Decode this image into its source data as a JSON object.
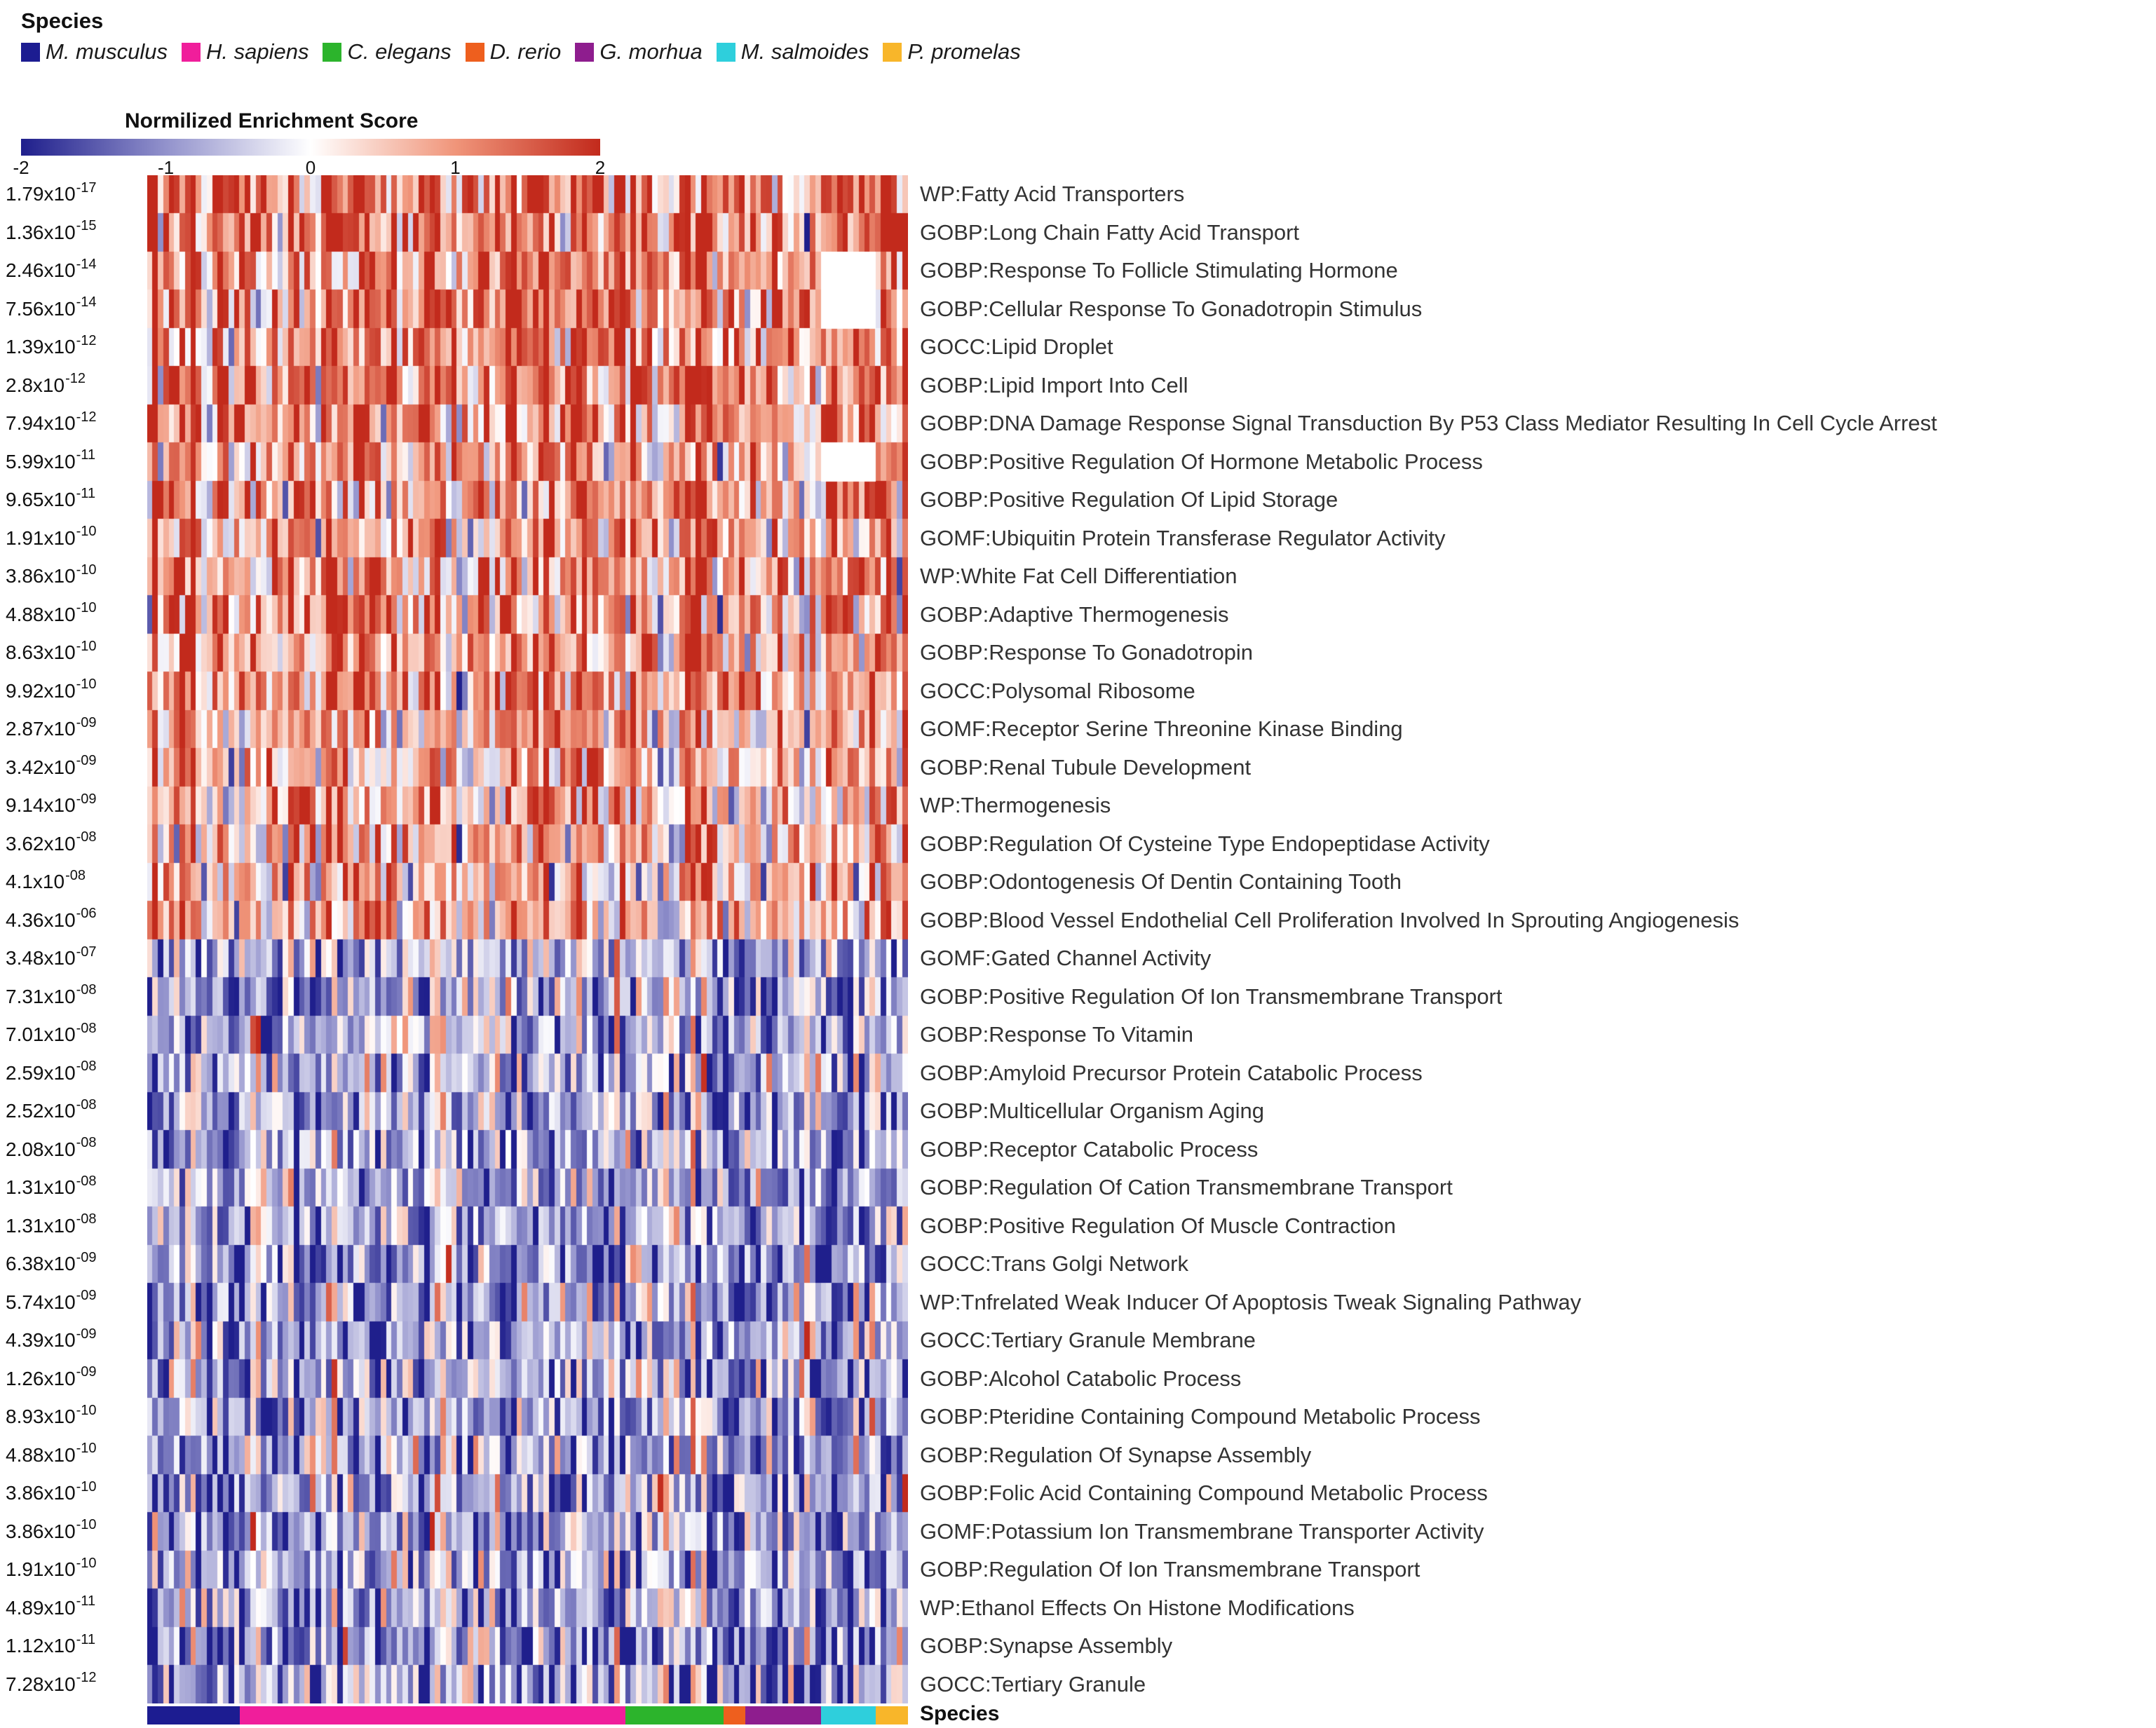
{
  "species_legend": {
    "title": "Species",
    "items": [
      {
        "name": "M. musculus",
        "color": "#1c1c91"
      },
      {
        "name": "H. sapiens",
        "color": "#f01e9b"
      },
      {
        "name": "C. elegans",
        "color": "#2cb42c"
      },
      {
        "name": "D. rerio",
        "color": "#ee5f1e"
      },
      {
        "name": "G. morhua",
        "color": "#8e1d8e"
      },
      {
        "name": "M. salmoides",
        "color": "#2ecfdc"
      },
      {
        "name": "P. promelas",
        "color": "#f8b62a"
      }
    ]
  },
  "colorbar": {
    "title": "Normilized Enrichment Score",
    "ticks": [
      "-2",
      "-1",
      "0",
      "1",
      "2"
    ]
  },
  "bottom_bar_label": "Species",
  "chart_data": {
    "type": "heatmap",
    "title": "Normilized Enrichment Score",
    "value_range": [
      -2,
      2
    ],
    "colormap": [
      {
        "v": -2,
        "c": "#1f1f8c"
      },
      {
        "v": -1,
        "c": "#9292cc"
      },
      {
        "v": 0,
        "c": "#ffffff"
      },
      {
        "v": 1,
        "c": "#f0957a"
      },
      {
        "v": 2,
        "c": "#c22a1c"
      }
    ],
    "n_columns": 140,
    "column_groups": [
      {
        "species": "M. musculus",
        "color": "#1c1c91",
        "columns": 17
      },
      {
        "species": "H. sapiens",
        "color": "#f01e9b",
        "columns": 71
      },
      {
        "species": "C. elegans",
        "color": "#2cb42c",
        "columns": 18
      },
      {
        "species": "D. rerio",
        "color": "#ee5f1e",
        "columns": 4
      },
      {
        "species": "G. morhua",
        "color": "#8e1d8e",
        "columns": 14
      },
      {
        "species": "M. salmoides",
        "color": "#2ecfdc",
        "columns": 10
      },
      {
        "species": "P. promelas",
        "color": "#f8b62a",
        "columns": 6
      }
    ],
    "rows": [
      {
        "pvalue_base": "1.79x10",
        "pvalue_exp": "-17",
        "label": "WP:Fatty Acid Transporters",
        "mean_nes": 1.3
      },
      {
        "pvalue_base": "1.36x10",
        "pvalue_exp": "-15",
        "label": "GOBP:Long Chain Fatty Acid Transport",
        "mean_nes": 1.3
      },
      {
        "pvalue_base": "2.46x10",
        "pvalue_exp": "-14",
        "label": "GOBP:Response To Follicle Stimulating Hormone",
        "mean_nes": 1.1
      },
      {
        "pvalue_base": "7.56x10",
        "pvalue_exp": "-14",
        "label": "GOBP:Cellular Response To Gonadotropin Stimulus",
        "mean_nes": 1.1
      },
      {
        "pvalue_base": "1.39x10",
        "pvalue_exp": "-12",
        "label": "GOCC:Lipid Droplet",
        "mean_nes": 1.2
      },
      {
        "pvalue_base": "2.8x10",
        "pvalue_exp": "-12",
        "label": "GOBP:Lipid Import Into Cell",
        "mean_nes": 1.2
      },
      {
        "pvalue_base": "7.94x10",
        "pvalue_exp": "-12",
        "label": "GOBP:DNA Damage Response Signal Transduction By P53 Class Mediator Resulting In Cell Cycle Arrest",
        "mean_nes": 1.0
      },
      {
        "pvalue_base": "5.99x10",
        "pvalue_exp": "-11",
        "label": "GOBP:Positive Regulation Of Hormone Metabolic Process",
        "mean_nes": 0.9
      },
      {
        "pvalue_base": "9.65x10",
        "pvalue_exp": "-11",
        "label": "GOBP:Positive Regulation Of Lipid Storage",
        "mean_nes": 0.9
      },
      {
        "pvalue_base": "1.91x10",
        "pvalue_exp": "-10",
        "label": "GOMF:Ubiquitin Protein Transferase Regulator Activity",
        "mean_nes": 0.9
      },
      {
        "pvalue_base": "3.86x10",
        "pvalue_exp": "-10",
        "label": "WP:White Fat Cell Differentiation",
        "mean_nes": 1.0
      },
      {
        "pvalue_base": "4.88x10",
        "pvalue_exp": "-10",
        "label": "GOBP:Adaptive Thermogenesis",
        "mean_nes": 1.0
      },
      {
        "pvalue_base": "8.63x10",
        "pvalue_exp": "-10",
        "label": "GOBP:Response To Gonadotropin",
        "mean_nes": 0.9
      },
      {
        "pvalue_base": "9.92x10",
        "pvalue_exp": "-10",
        "label": "GOCC:Polysomal Ribosome",
        "mean_nes": 0.9
      },
      {
        "pvalue_base": "2.87x10",
        "pvalue_exp": "-09",
        "label": "GOMF:Receptor Serine Threonine Kinase Binding",
        "mean_nes": 0.7
      },
      {
        "pvalue_base": "3.42x10",
        "pvalue_exp": "-09",
        "label": "GOBP:Renal Tubule Development",
        "mean_nes": 0.7
      },
      {
        "pvalue_base": "9.14x10",
        "pvalue_exp": "-09",
        "label": "WP:Thermogenesis",
        "mean_nes": 0.7
      },
      {
        "pvalue_base": "3.62x10",
        "pvalue_exp": "-08",
        "label": "GOBP:Regulation Of Cysteine Type Endopeptidase Activity",
        "mean_nes": 0.7
      },
      {
        "pvalue_base": "4.1x10",
        "pvalue_exp": "-08",
        "label": "GOBP:Odontogenesis Of Dentin Containing Tooth",
        "mean_nes": 0.6
      },
      {
        "pvalue_base": "4.36x10",
        "pvalue_exp": "-06",
        "label": "GOBP:Blood Vessel Endothelial Cell Proliferation Involved In Sprouting Angiogenesis",
        "mean_nes": 0.7
      },
      {
        "pvalue_base": "3.48x10",
        "pvalue_exp": "-07",
        "label": "GOMF:Gated Channel Activity",
        "mean_nes": -0.7
      },
      {
        "pvalue_base": "7.31x10",
        "pvalue_exp": "-08",
        "label": "GOBP:Positive Regulation Of Ion Transmembrane Transport",
        "mean_nes": -0.7
      },
      {
        "pvalue_base": "7.01x10",
        "pvalue_exp": "-08",
        "label": "GOBP:Response To Vitamin",
        "mean_nes": -0.7
      },
      {
        "pvalue_base": "2.59x10",
        "pvalue_exp": "-08",
        "label": "GOBP:Amyloid Precursor Protein Catabolic Process",
        "mean_nes": -0.7
      },
      {
        "pvalue_base": "2.52x10",
        "pvalue_exp": "-08",
        "label": "GOBP:Multicellular Organism Aging",
        "mean_nes": -0.7
      },
      {
        "pvalue_base": "2.08x10",
        "pvalue_exp": "-08",
        "label": "GOBP:Receptor Catabolic Process",
        "mean_nes": -0.8
      },
      {
        "pvalue_base": "1.31x10",
        "pvalue_exp": "-08",
        "label": "GOBP:Regulation Of Cation Transmembrane Transport",
        "mean_nes": -0.7
      },
      {
        "pvalue_base": "1.31x10",
        "pvalue_exp": "-08",
        "label": "GOBP:Positive Regulation Of Muscle Contraction",
        "mean_nes": -0.7
      },
      {
        "pvalue_base": "6.38x10",
        "pvalue_exp": "-09",
        "label": "GOCC:Trans Golgi Network",
        "mean_nes": -0.8
      },
      {
        "pvalue_base": "5.74x10",
        "pvalue_exp": "-09",
        "label": "WP:Tnfrelated Weak Inducer Of Apoptosis Tweak Signaling Pathway",
        "mean_nes": -0.8
      },
      {
        "pvalue_base": "4.39x10",
        "pvalue_exp": "-09",
        "label": "GOCC:Tertiary Granule Membrane",
        "mean_nes": -0.8
      },
      {
        "pvalue_base": "1.26x10",
        "pvalue_exp": "-09",
        "label": "GOBP:Alcohol Catabolic Process",
        "mean_nes": -0.8
      },
      {
        "pvalue_base": "8.93x10",
        "pvalue_exp": "-10",
        "label": "GOBP:Pteridine Containing Compound Metabolic Process",
        "mean_nes": -0.8
      },
      {
        "pvalue_base": "4.88x10",
        "pvalue_exp": "-10",
        "label": "GOBP:Regulation Of Synapse Assembly",
        "mean_nes": -0.8
      },
      {
        "pvalue_base": "3.86x10",
        "pvalue_exp": "-10",
        "label": "GOBP:Folic Acid Containing Compound Metabolic Process",
        "mean_nes": -0.8
      },
      {
        "pvalue_base": "3.86x10",
        "pvalue_exp": "-10",
        "label": "GOMF:Potassium Ion Transmembrane Transporter Activity",
        "mean_nes": -0.8
      },
      {
        "pvalue_base": "1.91x10",
        "pvalue_exp": "-10",
        "label": "GOBP:Regulation Of Ion Transmembrane Transport",
        "mean_nes": -0.8
      },
      {
        "pvalue_base": "4.89x10",
        "pvalue_exp": "-11",
        "label": "WP:Ethanol Effects On Histone Modifications",
        "mean_nes": -0.9
      },
      {
        "pvalue_base": "1.12x10",
        "pvalue_exp": "-11",
        "label": "GOBP:Synapse Assembly",
        "mean_nes": -0.9
      },
      {
        "pvalue_base": "7.28x10",
        "pvalue_exp": "-12",
        "label": "GOCC:Tertiary Granule",
        "mean_nes": -0.9
      }
    ],
    "missing_data": [
      {
        "row_index": 2,
        "species": "M. salmoides"
      },
      {
        "row_index": 3,
        "species": "M. salmoides"
      },
      {
        "row_index": 7,
        "species": "M. salmoides"
      }
    ],
    "render": {
      "seed": 20240817,
      "cell_noise_sd": 0.8,
      "column_streak_sd": 0.5
    }
  }
}
